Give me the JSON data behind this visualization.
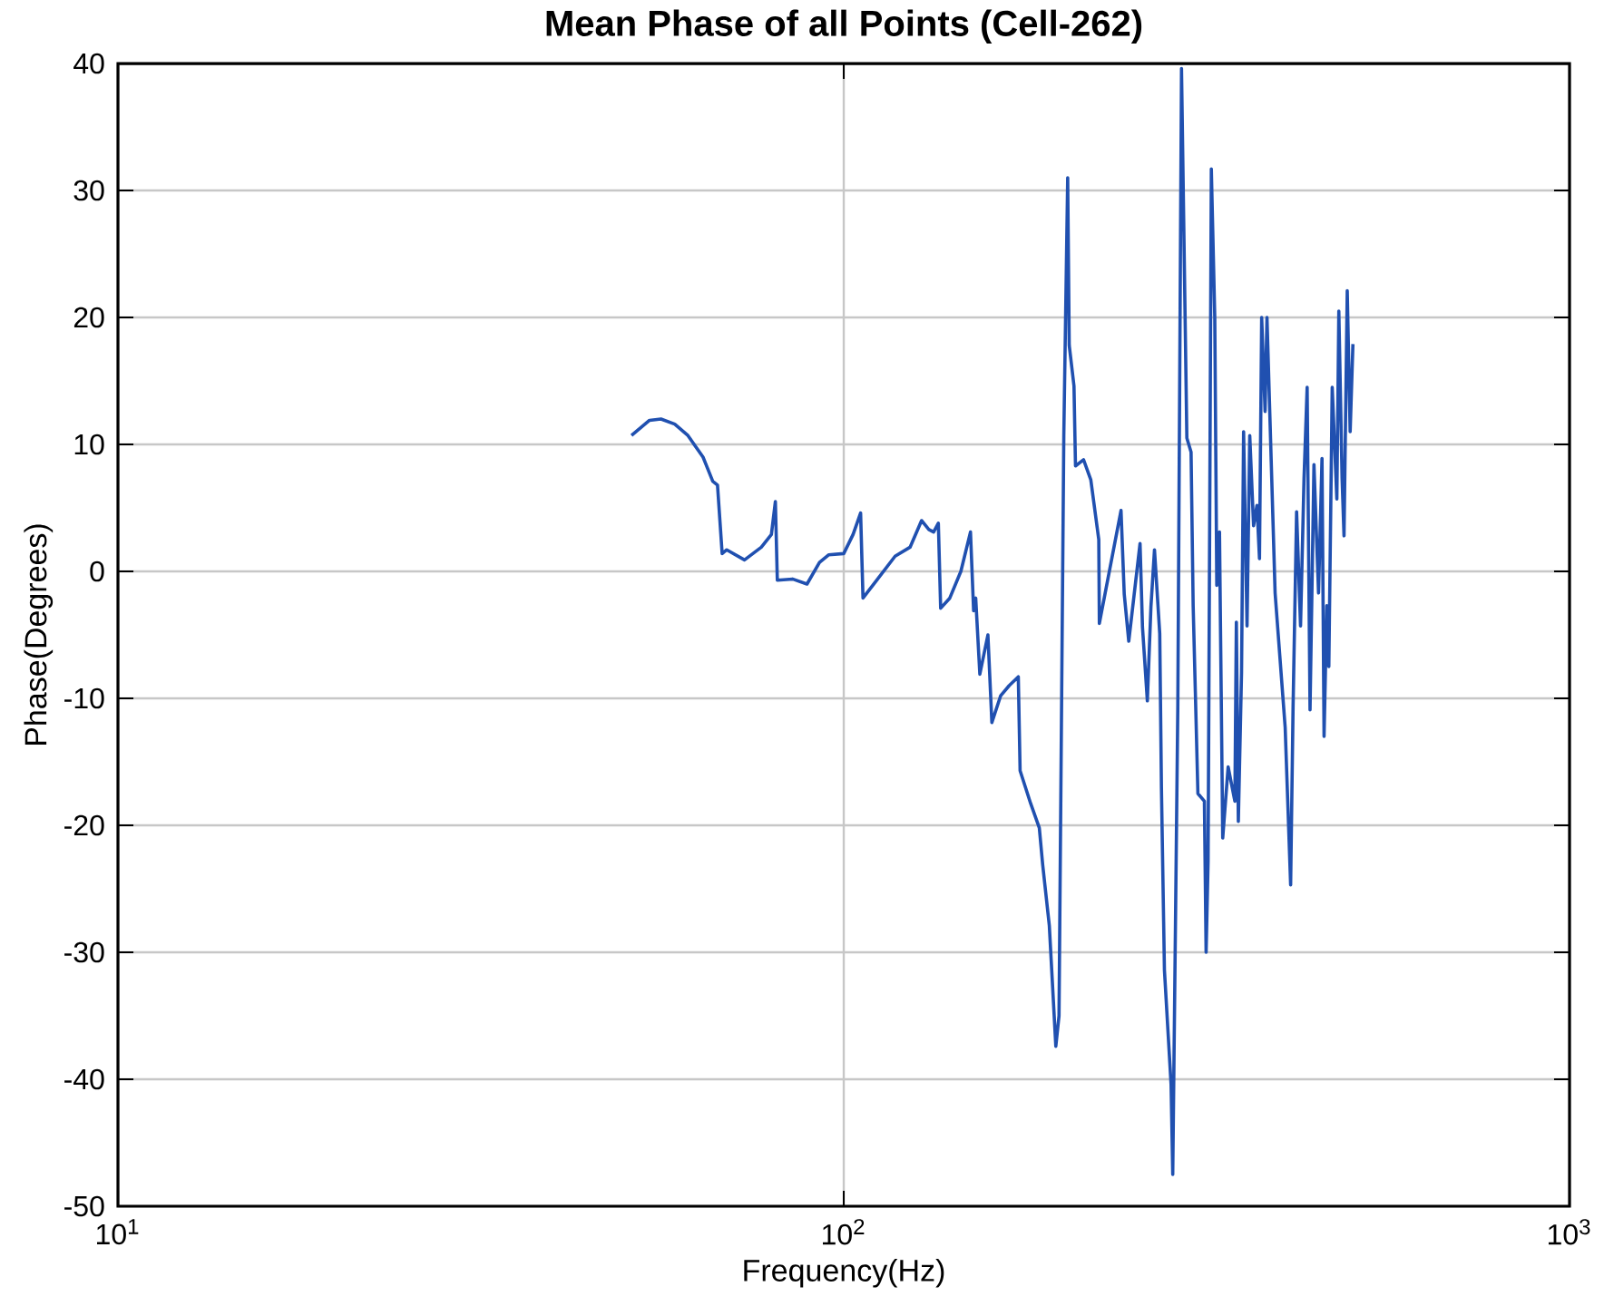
{
  "chart_data": {
    "type": "line",
    "title": "Mean Phase of all Points (Cell-262)",
    "xlabel": "Frequency(Hz)",
    "ylabel": "Phase(Degrees)",
    "log": "x",
    "grid": true,
    "line_style": "solid",
    "xlim": [
      10,
      1000
    ],
    "xticks": [
      {
        "value": 10,
        "label": "10$^{1}$"
      },
      {
        "value": 100,
        "label": "10$^{2}$"
      },
      {
        "value": 1000,
        "label": "10$^{3}$"
      }
    ],
    "ylim": [
      -50,
      40
    ],
    "yticks": [
      -50,
      -40,
      -30,
      -20,
      -10,
      0,
      10,
      20,
      30,
      40
    ],
    "series": [
      {
        "color": "#2050b0",
        "x": [
          51,
          54,
          56,
          58.5,
          61,
          64,
          66,
          67,
          68,
          69,
          73,
          77,
          79.5,
          80.5,
          81,
          85,
          89,
          92.6,
          95.3,
          100,
          103,
          105.5,
          106.3,
          111,
          117.7,
          123.4,
          128,
          131,
          133,
          135,
          136,
          140,
          145,
          149.5,
          151,
          152,
          154,
          158,
          160,
          164.5,
          169,
          174,
          175,
          181,
          186,
          188,
          192,
          196,
          198,
          201,
          203.5,
          204.5,
          207.6,
          208.6,
          214,
          219,
          224.6,
          225,
          241,
          243.5,
          247,
          256,
          258,
          262,
          265,
          268,
          272.5,
          274,
          276.6,
          282.5,
          284,
          288.6,
          292,
          297,
          301,
          303,
          307.6,
          314,
          315.7,
          317.7,
          321,
          324.5,
          326.6,
          329.4,
          332.8,
          338.6,
          345.9,
          347.5,
          349.7,
          353.3,
          355.6,
          359.5,
          362.6,
          367,
          371,
          374,
          376.6,
          380.7,
          383,
          393,
          405.7,
          412.8,
          416,
          420.7,
          426,
          430.7,
          435,
          439,
          444.5,
          451,
          456,
          459,
          463,
          466,
          471,
          478,
          481,
          486,
          489,
          494,
          498.6,
          503
        ],
        "values": [
          10.7,
          11.9,
          12,
          11.6,
          10.7,
          9,
          7.1,
          6.8,
          1.4,
          1.7,
          0.9,
          1.9,
          2.9,
          5.5,
          -0.7,
          -0.6,
          -1,
          0.7,
          1.3,
          1.4,
          2.9,
          4.6,
          -2.1,
          -0.7,
          1.2,
          1.9,
          4,
          3.3,
          3.1,
          3.8,
          -2.9,
          -2.1,
          0,
          3.1,
          -3.1,
          -2.1,
          -8.1,
          -5,
          -11.9,
          -9.8,
          -9,
          -8.3,
          -15.7,
          -18.3,
          -20.2,
          -23.1,
          -27.9,
          -37.4,
          -35,
          10.7,
          31,
          17.8,
          14.6,
          8.3,
          8.8,
          7.2,
          2.5,
          -4.1,
          4.8,
          -1.8,
          -5.5,
          2.2,
          -4.4,
          -10.2,
          -2.8,
          1.7,
          -4.9,
          -17.1,
          -31.4,
          -40.4,
          -47.5,
          -10.7,
          39.6,
          10.5,
          9.4,
          -2.7,
          -17.5,
          -18.1,
          -30,
          -22.8,
          31.7,
          20,
          -1.1,
          3.1,
          -21,
          -15.4,
          -18.1,
          -4,
          -19.7,
          -8,
          11,
          -4.3,
          10.7,
          3.6,
          5.2,
          1,
          20,
          12.6,
          20,
          -1.7,
          -12.3,
          -24.7,
          -10.7,
          4.7,
          -4.3,
          7.3,
          14.5,
          -10.9,
          8.4,
          -1.7,
          8.9,
          -13,
          -2.7,
          -7.5,
          14.5,
          5.7,
          20.5,
          7.3,
          2.8,
          22.1,
          11,
          17.9
        ]
      }
    ]
  }
}
